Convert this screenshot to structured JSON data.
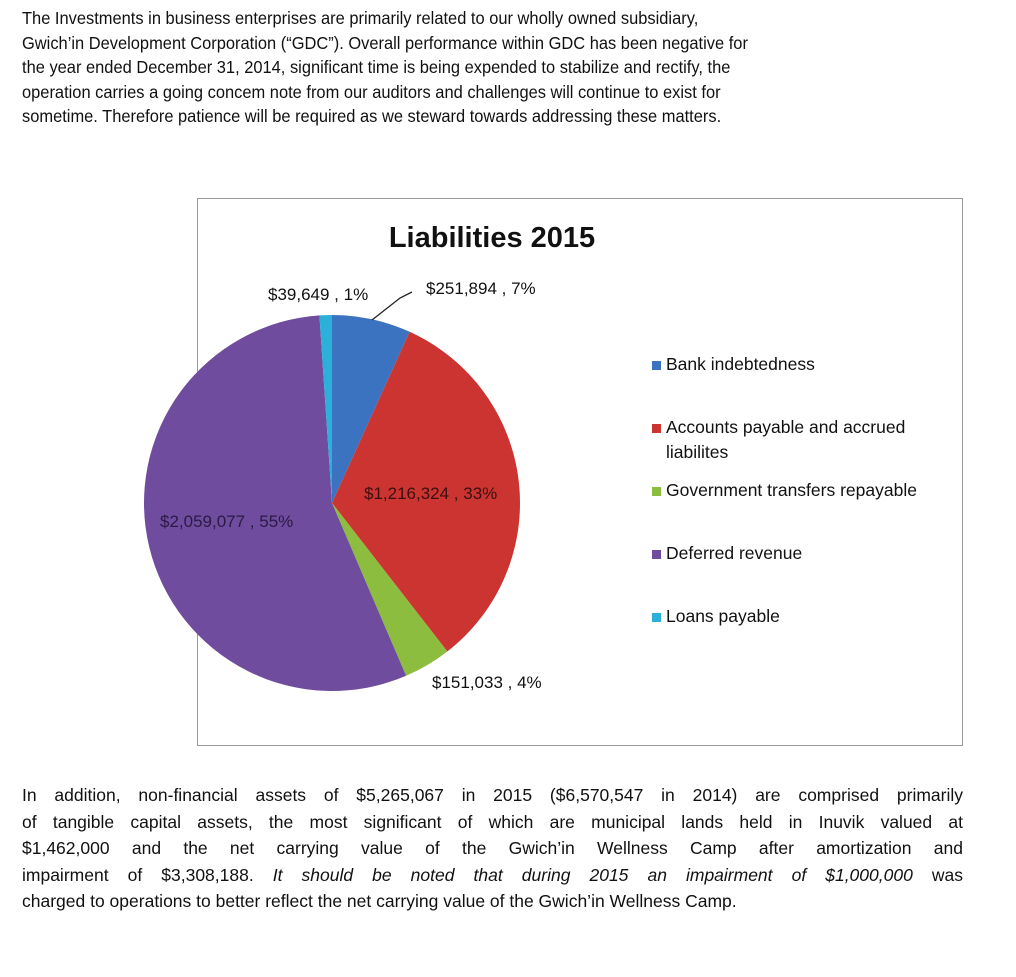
{
  "paragraph1": [
    "The Investments in business enterprises are primarily related to our wholly owned subsidiary,",
    "Gwich’in Development Corporation (“GDC”). Overall performance within GDC has been negative for",
    "the year ended December 31, 2014, significant time is being expended to stabilize and rectify, the",
    "operation carries a going concem note from our auditors and challenges will continue to exist for",
    "sometime. Therefore patience will be required as we steward towards addressing these matters."
  ],
  "chart_data": {
    "type": "pie",
    "title": "Liabilities 2015",
    "start_angle": "top, clockwise",
    "legend_position": "right",
    "slices": [
      {
        "name": "Bank indebtedness",
        "value": 251894,
        "label": "$251,894 , 7%",
        "color": "#3b73c1"
      },
      {
        "name": "Accounts payable and accrued liabilites",
        "value": 1216324,
        "label": "$1,216,324 , 33%",
        "color": "#cc3431"
      },
      {
        "name": "Government transfers repayable",
        "value": 151033,
        "label": "$151,033 , 4%",
        "color": "#8cbd3f"
      },
      {
        "name": "Deferred revenue",
        "value": 2059077,
        "label": "$2,059,077 , 55%",
        "color": "#6f4c9e"
      },
      {
        "name": "Loans payable",
        "value": 39649,
        "label": "$39,649 , 1%",
        "color": "#2bb0d9"
      }
    ],
    "legend_lines": [
      [
        "Bank indebtedness"
      ],
      [
        "Accounts payable and accrued",
        "liabilites"
      ],
      [
        "Government transfers repayable"
      ],
      [
        "Deferred revenue"
      ],
      [
        "Loans payable"
      ]
    ]
  },
  "paragraph2": {
    "lines": [
      "In addition, non-financial assets of $5,265,067 in 2015 ($6,570,547 in 2014) are comprised primarily",
      "of tangible capital assets, the most significant of which are municipal lands held in Inuvik valued at",
      "$1,462,000 and the net carrying value of the Gwich’in Wellness Camp after amortization and"
    ],
    "line4_normal": "impairment of $3,308,188. ",
    "line4_italic": "It should be noted that during 2015 an impairment of $1,000,000",
    "line4_end": " was",
    "line5": "charged to operations to better reflect the net carrying value of the Gwich’in Wellness Camp."
  }
}
